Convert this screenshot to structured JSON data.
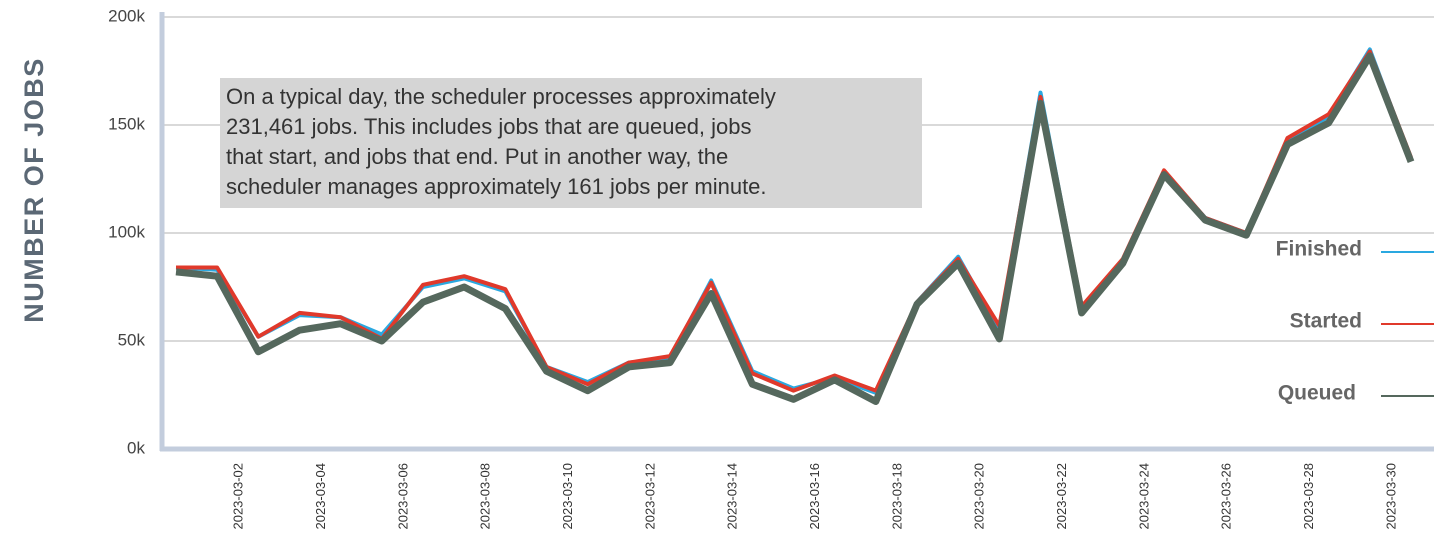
{
  "chart_data": {
    "type": "line",
    "y_label": "NUMBER OF JOBS",
    "annotation": [
      "On a typical day, the scheduler processes approximately",
      "231,461 jobs. This includes jobs that are queued, jobs",
      "that start, and jobs that end. Put in another way, the",
      "scheduler manages approximately 161 jobs per minute."
    ],
    "categories": [
      null,
      "2023-03-02",
      null,
      "2023-03-04",
      null,
      "2023-03-06",
      null,
      "2023-03-08",
      null,
      "2023-03-10",
      null,
      "2023-03-12",
      null,
      "2023-03-14",
      null,
      "2023-03-16",
      null,
      "2023-03-18",
      null,
      "2023-03-20",
      null,
      "2023-03-22",
      null,
      "2023-03-24",
      null,
      "2023-03-26",
      null,
      "2023-03-28",
      null,
      "2023-03-30",
      null
    ],
    "series": [
      {
        "name": "Finished",
        "color": "#2aa8e0",
        "values": [
          84000,
          83000,
          52000,
          62000,
          61000,
          53000,
          75000,
          79000,
          73000,
          38000,
          31000,
          40000,
          42000,
          78000,
          36000,
          28000,
          33000,
          26000,
          68000,
          89000,
          55000,
          165000,
          65000,
          87000,
          128000,
          107000,
          100000,
          143000,
          154000,
          185000,
          134000
        ]
      },
      {
        "name": "Started",
        "color": "#e0392b",
        "values": [
          84000,
          84000,
          52000,
          63000,
          61000,
          51000,
          76000,
          80000,
          74000,
          38000,
          30000,
          40000,
          43000,
          77000,
          35000,
          27000,
          34000,
          27000,
          68000,
          88000,
          57000,
          163000,
          66000,
          88000,
          129000,
          107000,
          100000,
          144000,
          155000,
          184000,
          135000
        ]
      },
      {
        "name": "Queued",
        "color": "#55685d",
        "values": [
          82000,
          80000,
          45000,
          55000,
          58000,
          50000,
          68000,
          75000,
          65000,
          36000,
          27000,
          38000,
          40000,
          72000,
          30000,
          23000,
          32000,
          22000,
          67000,
          86000,
          51000,
          160000,
          63000,
          86000,
          127000,
          106000,
          99000,
          141000,
          151000,
          182000,
          133000
        ]
      }
    ],
    "ylim": [
      0,
      200000
    ],
    "yticks": [
      {
        "value": 0,
        "label": "0k"
      },
      {
        "value": 50000,
        "label": "50k"
      },
      {
        "value": 100000,
        "label": "100k"
      },
      {
        "value": 150000,
        "label": "150k"
      },
      {
        "value": 200000,
        "label": "200k"
      }
    ],
    "grid": true
  }
}
